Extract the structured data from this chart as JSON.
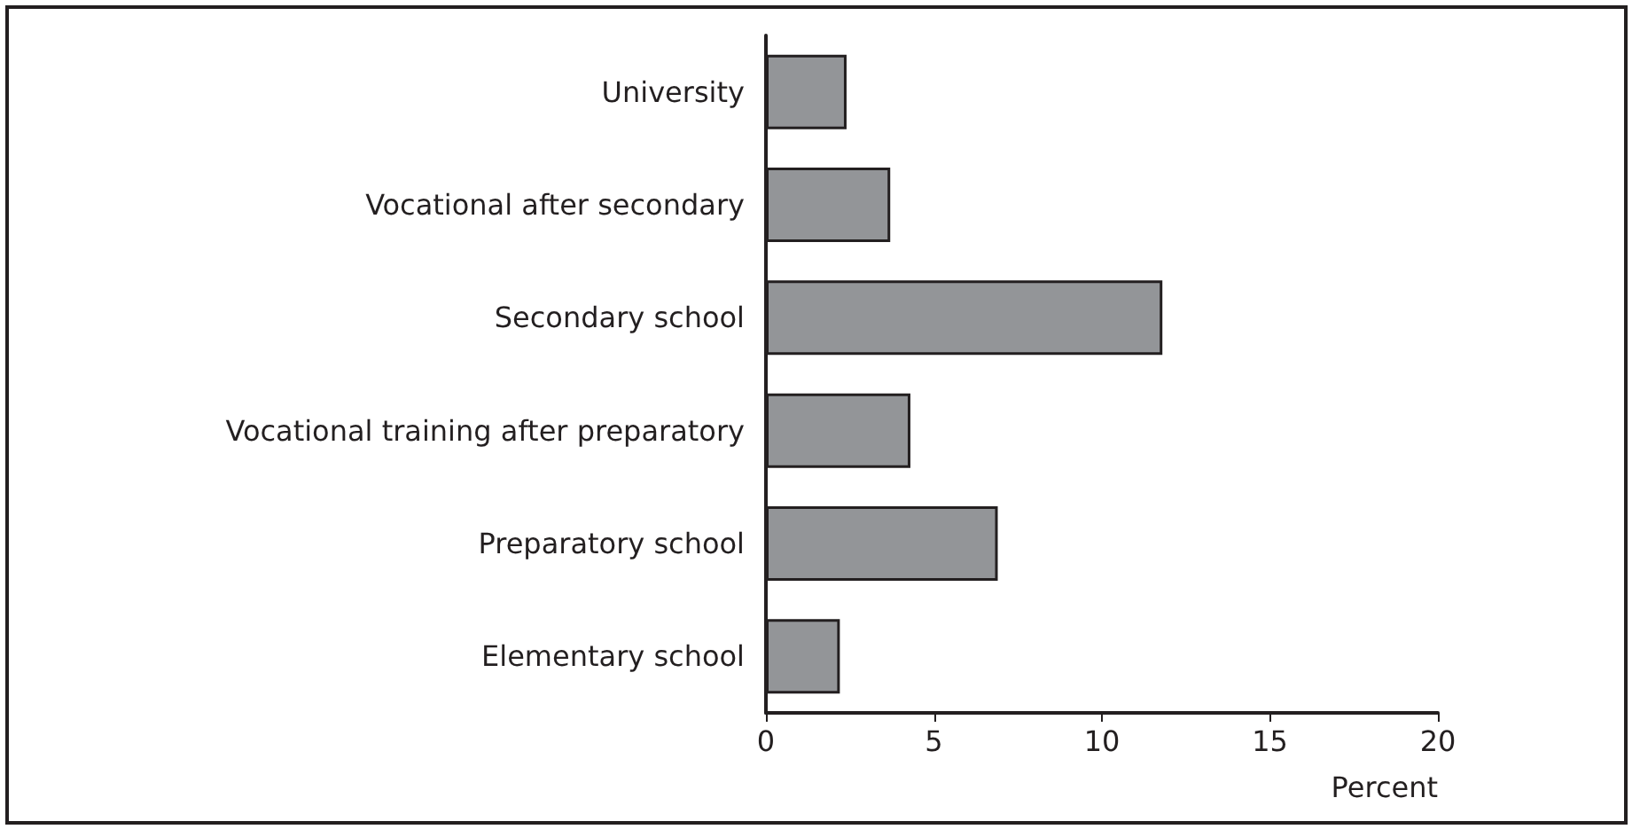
{
  "chart_data": {
    "type": "bar",
    "orientation": "horizontal",
    "xlabel": "Percent",
    "categories": [
      "University",
      "Vocational after secondary",
      "Secondary school",
      "Vocational training after preparatory",
      "Preparatory school",
      "Elementary school"
    ],
    "values": [
      2.4,
      3.7,
      11.8,
      4.3,
      6.9,
      2.2
    ],
    "color": "#939598",
    "xlim": [
      0,
      20
    ],
    "xticks": [
      0,
      5,
      10,
      15,
      20
    ],
    "grid": false
  }
}
